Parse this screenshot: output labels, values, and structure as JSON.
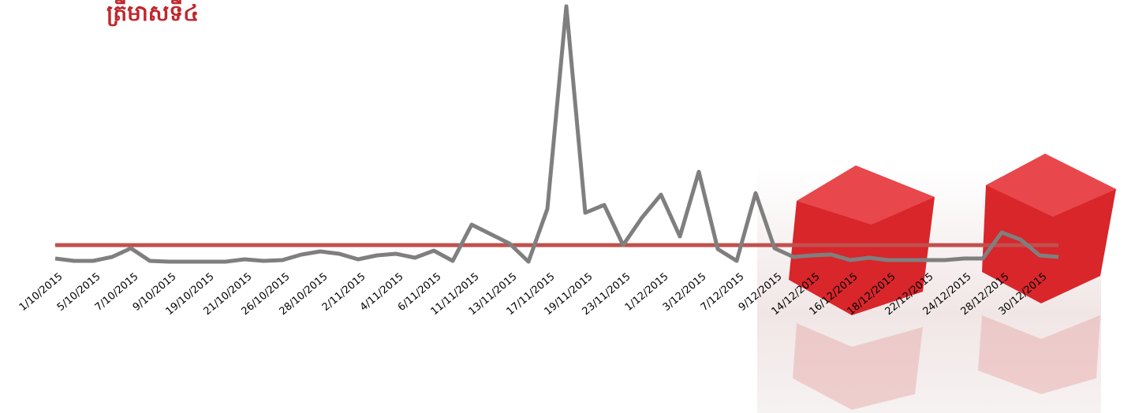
{
  "chart_data": {
    "type": "line",
    "title": "ត្រីមាសទី៤",
    "categories": [
      "1/10/2015",
      null,
      "5/10/2015",
      null,
      "7/10/2015",
      null,
      "9/10/2015",
      null,
      "19/10/2015",
      null,
      "21/10/2015",
      null,
      "26/10/2015",
      null,
      "28/10/2015",
      null,
      "2/11/2015",
      null,
      "4/11/2015",
      null,
      "6/11/2015",
      null,
      "11/11/2015",
      null,
      "13/11/2015",
      null,
      "17/11/2015",
      null,
      "19/11/2015",
      null,
      "23/11/2015",
      null,
      "1/12/2015",
      null,
      "3/12/2015",
      null,
      "7/12/2015",
      null,
      "9/12/2015",
      null,
      "14/12/2015",
      null,
      "16/12/2015",
      null,
      "18/12/2015",
      null,
      "22/12/2015",
      null,
      "24/12/2015",
      null,
      "28/12/2015",
      null,
      "30/12/2015",
      null
    ],
    "series": [
      {
        "color": "#7f7f7f",
        "values": [
          17,
          14,
          14,
          19,
          30,
          14,
          13,
          13,
          13,
          13,
          16,
          14,
          15,
          22,
          26,
          23,
          16,
          21,
          23,
          18,
          27,
          14,
          60,
          48,
          36,
          13,
          80,
          337,
          75,
          85,
          34,
          69,
          98,
          45,
          127,
          29,
          14,
          100,
          30,
          19,
          21,
          22,
          15,
          18,
          15,
          15,
          15,
          15,
          17,
          17,
          50,
          41,
          21,
          19
        ]
      },
      {
        "color": "#c0504d",
        "values": [
          34,
          34,
          34,
          34,
          34,
          34,
          34,
          34,
          34,
          34,
          34,
          34,
          34,
          34,
          34,
          34,
          34,
          34,
          34,
          34,
          34,
          34,
          34,
          34,
          34,
          34,
          34,
          34,
          34,
          34,
          34,
          34,
          34,
          34,
          34,
          34,
          34,
          34,
          34,
          34,
          34,
          34,
          34,
          34,
          34,
          34,
          34,
          34,
          34,
          34,
          34,
          34,
          34,
          34
        ]
      }
    ],
    "ylim": [
      0,
      340
    ]
  }
}
